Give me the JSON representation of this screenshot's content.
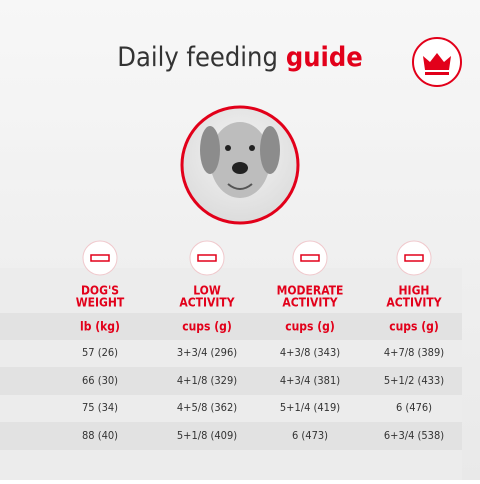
{
  "header": {
    "title": "Daily feeding",
    "title_highlight": "guide"
  },
  "table": {
    "columns": [
      {
        "header": [
          "DOG'S",
          "WEIGHT"
        ],
        "unit": "lb (kg)"
      },
      {
        "header": [
          "LOW",
          "ACTIVITY"
        ],
        "unit": "cups (g)"
      },
      {
        "header": [
          "MODERATE",
          "ACTIVITY"
        ],
        "unit": "cups (g)"
      },
      {
        "header": [
          "HIGH",
          "ACTIVITY"
        ],
        "unit": "cups (g)"
      }
    ],
    "rows": [
      [
        "57 (26)",
        "3+3/4 (296)",
        "4+3/8 (343)",
        "4+7/8 (389)"
      ],
      [
        "66 (30)",
        "4+1/8 (329)",
        "4+3/4 (381)",
        "5+1/2 (433)"
      ],
      [
        "75 (34)",
        "4+5/8 (362)",
        "5+1/4 (419)",
        "6 (476)"
      ],
      [
        "88 (40)",
        "5+1/8 (409)",
        "6 (473)",
        "6+3/4 (538)"
      ]
    ]
  }
}
